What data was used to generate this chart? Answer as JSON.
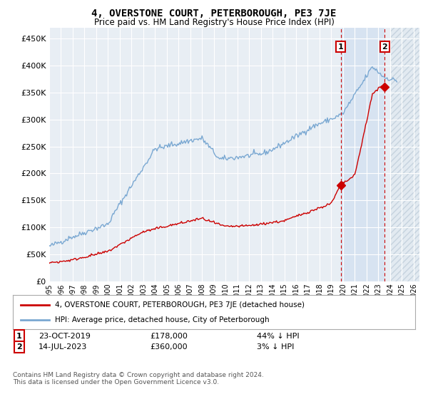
{
  "title": "4, OVERSTONE COURT, PETERBOROUGH, PE3 7JE",
  "subtitle": "Price paid vs. HM Land Registry's House Price Index (HPI)",
  "ylim": [
    0,
    470000
  ],
  "yticks": [
    0,
    50000,
    100000,
    150000,
    200000,
    250000,
    300000,
    350000,
    400000,
    450000
  ],
  "xlim_start": 1995.0,
  "xlim_end": 2026.5,
  "xticks": [
    1995,
    1996,
    1997,
    1998,
    1999,
    2000,
    2001,
    2002,
    2003,
    2004,
    2005,
    2006,
    2007,
    2008,
    2009,
    2010,
    2011,
    2012,
    2013,
    2014,
    2015,
    2016,
    2017,
    2018,
    2019,
    2020,
    2021,
    2022,
    2023,
    2024,
    2025,
    2026
  ],
  "hpi_color": "#7aa8d2",
  "sale_color": "#cc0000",
  "marker1_x": 2019.81,
  "marker1_y": 178000,
  "marker2_x": 2023.54,
  "marker2_y": 360000,
  "vline1_x": 2019.81,
  "vline2_x": 2023.54,
  "legend_sale_label": "4, OVERSTONE COURT, PETERBOROUGH, PE3 7JE (detached house)",
  "legend_hpi_label": "HPI: Average price, detached house, City of Peterborough",
  "annotation1_num": "1",
  "annotation1_date": "23-OCT-2019",
  "annotation1_price": "£178,000",
  "annotation1_hpi": "44% ↓ HPI",
  "annotation2_num": "2",
  "annotation2_date": "14-JUL-2023",
  "annotation2_price": "£360,000",
  "annotation2_hpi": "3% ↓ HPI",
  "footer": "Contains HM Land Registry data © Crown copyright and database right 2024.\nThis data is licensed under the Open Government Licence v3.0.",
  "bg_color": "#ffffff",
  "plot_bg_color": "#e8eef4",
  "grid_color": "#ffffff",
  "shade_start": 2019.81,
  "shade_end": 2023.54,
  "hatch_start": 2024.0,
  "hatch_end": 2026.5
}
